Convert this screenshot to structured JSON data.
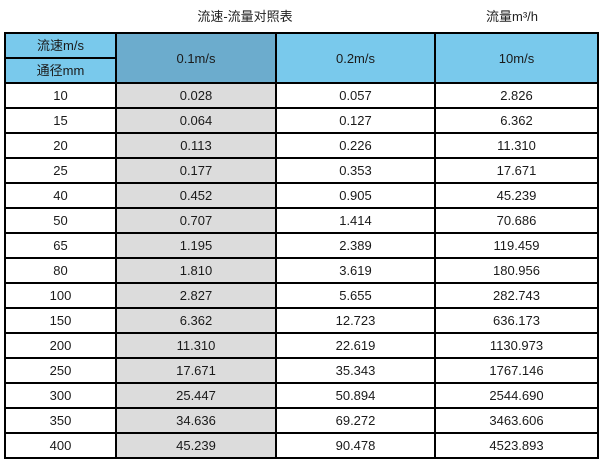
{
  "page_title": "流速-流量对照表",
  "unit_label": "流量m³/h",
  "table": {
    "corner": {
      "top": "流速m/s",
      "bottom": "通径mm"
    },
    "velocity_columns": [
      "0.1m/s",
      "0.2m/s",
      "10m/s"
    ],
    "rows": [
      {
        "dn": "10",
        "values": [
          "0.028",
          "0.057",
          "2.826"
        ]
      },
      {
        "dn": "15",
        "values": [
          "0.064",
          "0.127",
          "6.362"
        ]
      },
      {
        "dn": "20",
        "values": [
          "0.113",
          "0.226",
          "11.310"
        ]
      },
      {
        "dn": "25",
        "values": [
          "0.177",
          "0.353",
          "17.671"
        ]
      },
      {
        "dn": "40",
        "values": [
          "0.452",
          "0.905",
          "45.239"
        ]
      },
      {
        "dn": "50",
        "values": [
          "0.707",
          "1.414",
          "70.686"
        ]
      },
      {
        "dn": "65",
        "values": [
          "1.195",
          "2.389",
          "119.459"
        ]
      },
      {
        "dn": "80",
        "values": [
          "1.810",
          "3.619",
          "180.956"
        ]
      },
      {
        "dn": "100",
        "values": [
          "2.827",
          "5.655",
          "282.743"
        ]
      },
      {
        "dn": "150",
        "values": [
          "6.362",
          "12.723",
          "636.173"
        ]
      },
      {
        "dn": "200",
        "values": [
          "11.310",
          "22.619",
          "1130.973"
        ]
      },
      {
        "dn": "250",
        "values": [
          "17.671",
          "35.343",
          "1767.146"
        ]
      },
      {
        "dn": "300",
        "values": [
          "25.447",
          "50.894",
          "2544.690"
        ]
      },
      {
        "dn": "350",
        "values": [
          "34.636",
          "69.272",
          "3463.606"
        ]
      },
      {
        "dn": "400",
        "values": [
          "45.239",
          "90.478",
          "4523.893"
        ]
      }
    ]
  },
  "colors": {
    "header_blue": "#79c9ec",
    "header_blue_dark": "#6caccd",
    "gray_column": "#dcdcdc",
    "border": "#000000",
    "text": "#1a1a1a"
  },
  "chart_data": {
    "type": "table",
    "title": "流速-流量对照表",
    "unit": "流量m³/h",
    "columns": [
      "通径mm",
      "0.1m/s",
      "0.2m/s",
      "10m/s"
    ],
    "rows": [
      [
        10,
        0.028,
        0.057,
        2.826
      ],
      [
        15,
        0.064,
        0.127,
        6.362
      ],
      [
        20,
        0.113,
        0.226,
        11.31
      ],
      [
        25,
        0.177,
        0.353,
        17.671
      ],
      [
        40,
        0.452,
        0.905,
        45.239
      ],
      [
        50,
        0.707,
        1.414,
        70.686
      ],
      [
        65,
        1.195,
        2.389,
        119.459
      ],
      [
        80,
        1.81,
        3.619,
        180.956
      ],
      [
        100,
        2.827,
        5.655,
        282.743
      ],
      [
        150,
        6.362,
        12.723,
        636.173
      ],
      [
        200,
        11.31,
        22.619,
        1130.973
      ],
      [
        250,
        17.671,
        35.343,
        1767.146
      ],
      [
        300,
        25.447,
        50.894,
        2544.69
      ],
      [
        350,
        34.636,
        69.272,
        3463.606
      ],
      [
        400,
        45.239,
        90.478,
        4523.893
      ]
    ]
  }
}
